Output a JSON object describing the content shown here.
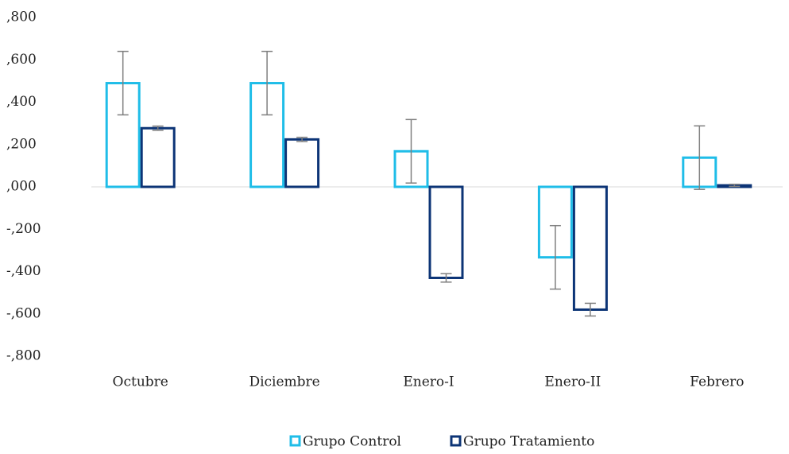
{
  "chart_data": {
    "type": "bar",
    "categories": [
      "Octubre",
      "Diciembre",
      "Enero-I",
      "Enero-II",
      "Febrero"
    ],
    "series": [
      {
        "name": "Grupo Control",
        "color": "#1fbde8",
        "values": [
          0.49,
          0.49,
          0.168,
          -0.333,
          0.138
        ],
        "errors": [
          0.15,
          0.15,
          0.15,
          0.15,
          0.15
        ]
      },
      {
        "name": "Grupo Tratamiento",
        "color": "#0c3476",
        "values": [
          0.277,
          0.224,
          -0.43,
          -0.58,
          0.007
        ],
        "errors": [
          0.01,
          0.01,
          0.02,
          0.03,
          0.005
        ]
      }
    ],
    "ylim": [
      -0.8,
      0.8
    ],
    "yticks": [
      {
        "value": 0.8,
        "label": ",800"
      },
      {
        "value": 0.6,
        "label": ",600"
      },
      {
        "value": 0.4,
        "label": ",400"
      },
      {
        "value": 0.2,
        "label": ",200"
      },
      {
        "value": 0,
        "label": ",000"
      },
      {
        "value": -0.2,
        "label": "-,200"
      },
      {
        "value": -0.4,
        "label": "-,400"
      },
      {
        "value": -0.6,
        "label": "-,600"
      },
      {
        "value": -0.8,
        "label": "-,800"
      }
    ],
    "error_color": "#7f7f7f",
    "legend": "bottom"
  }
}
